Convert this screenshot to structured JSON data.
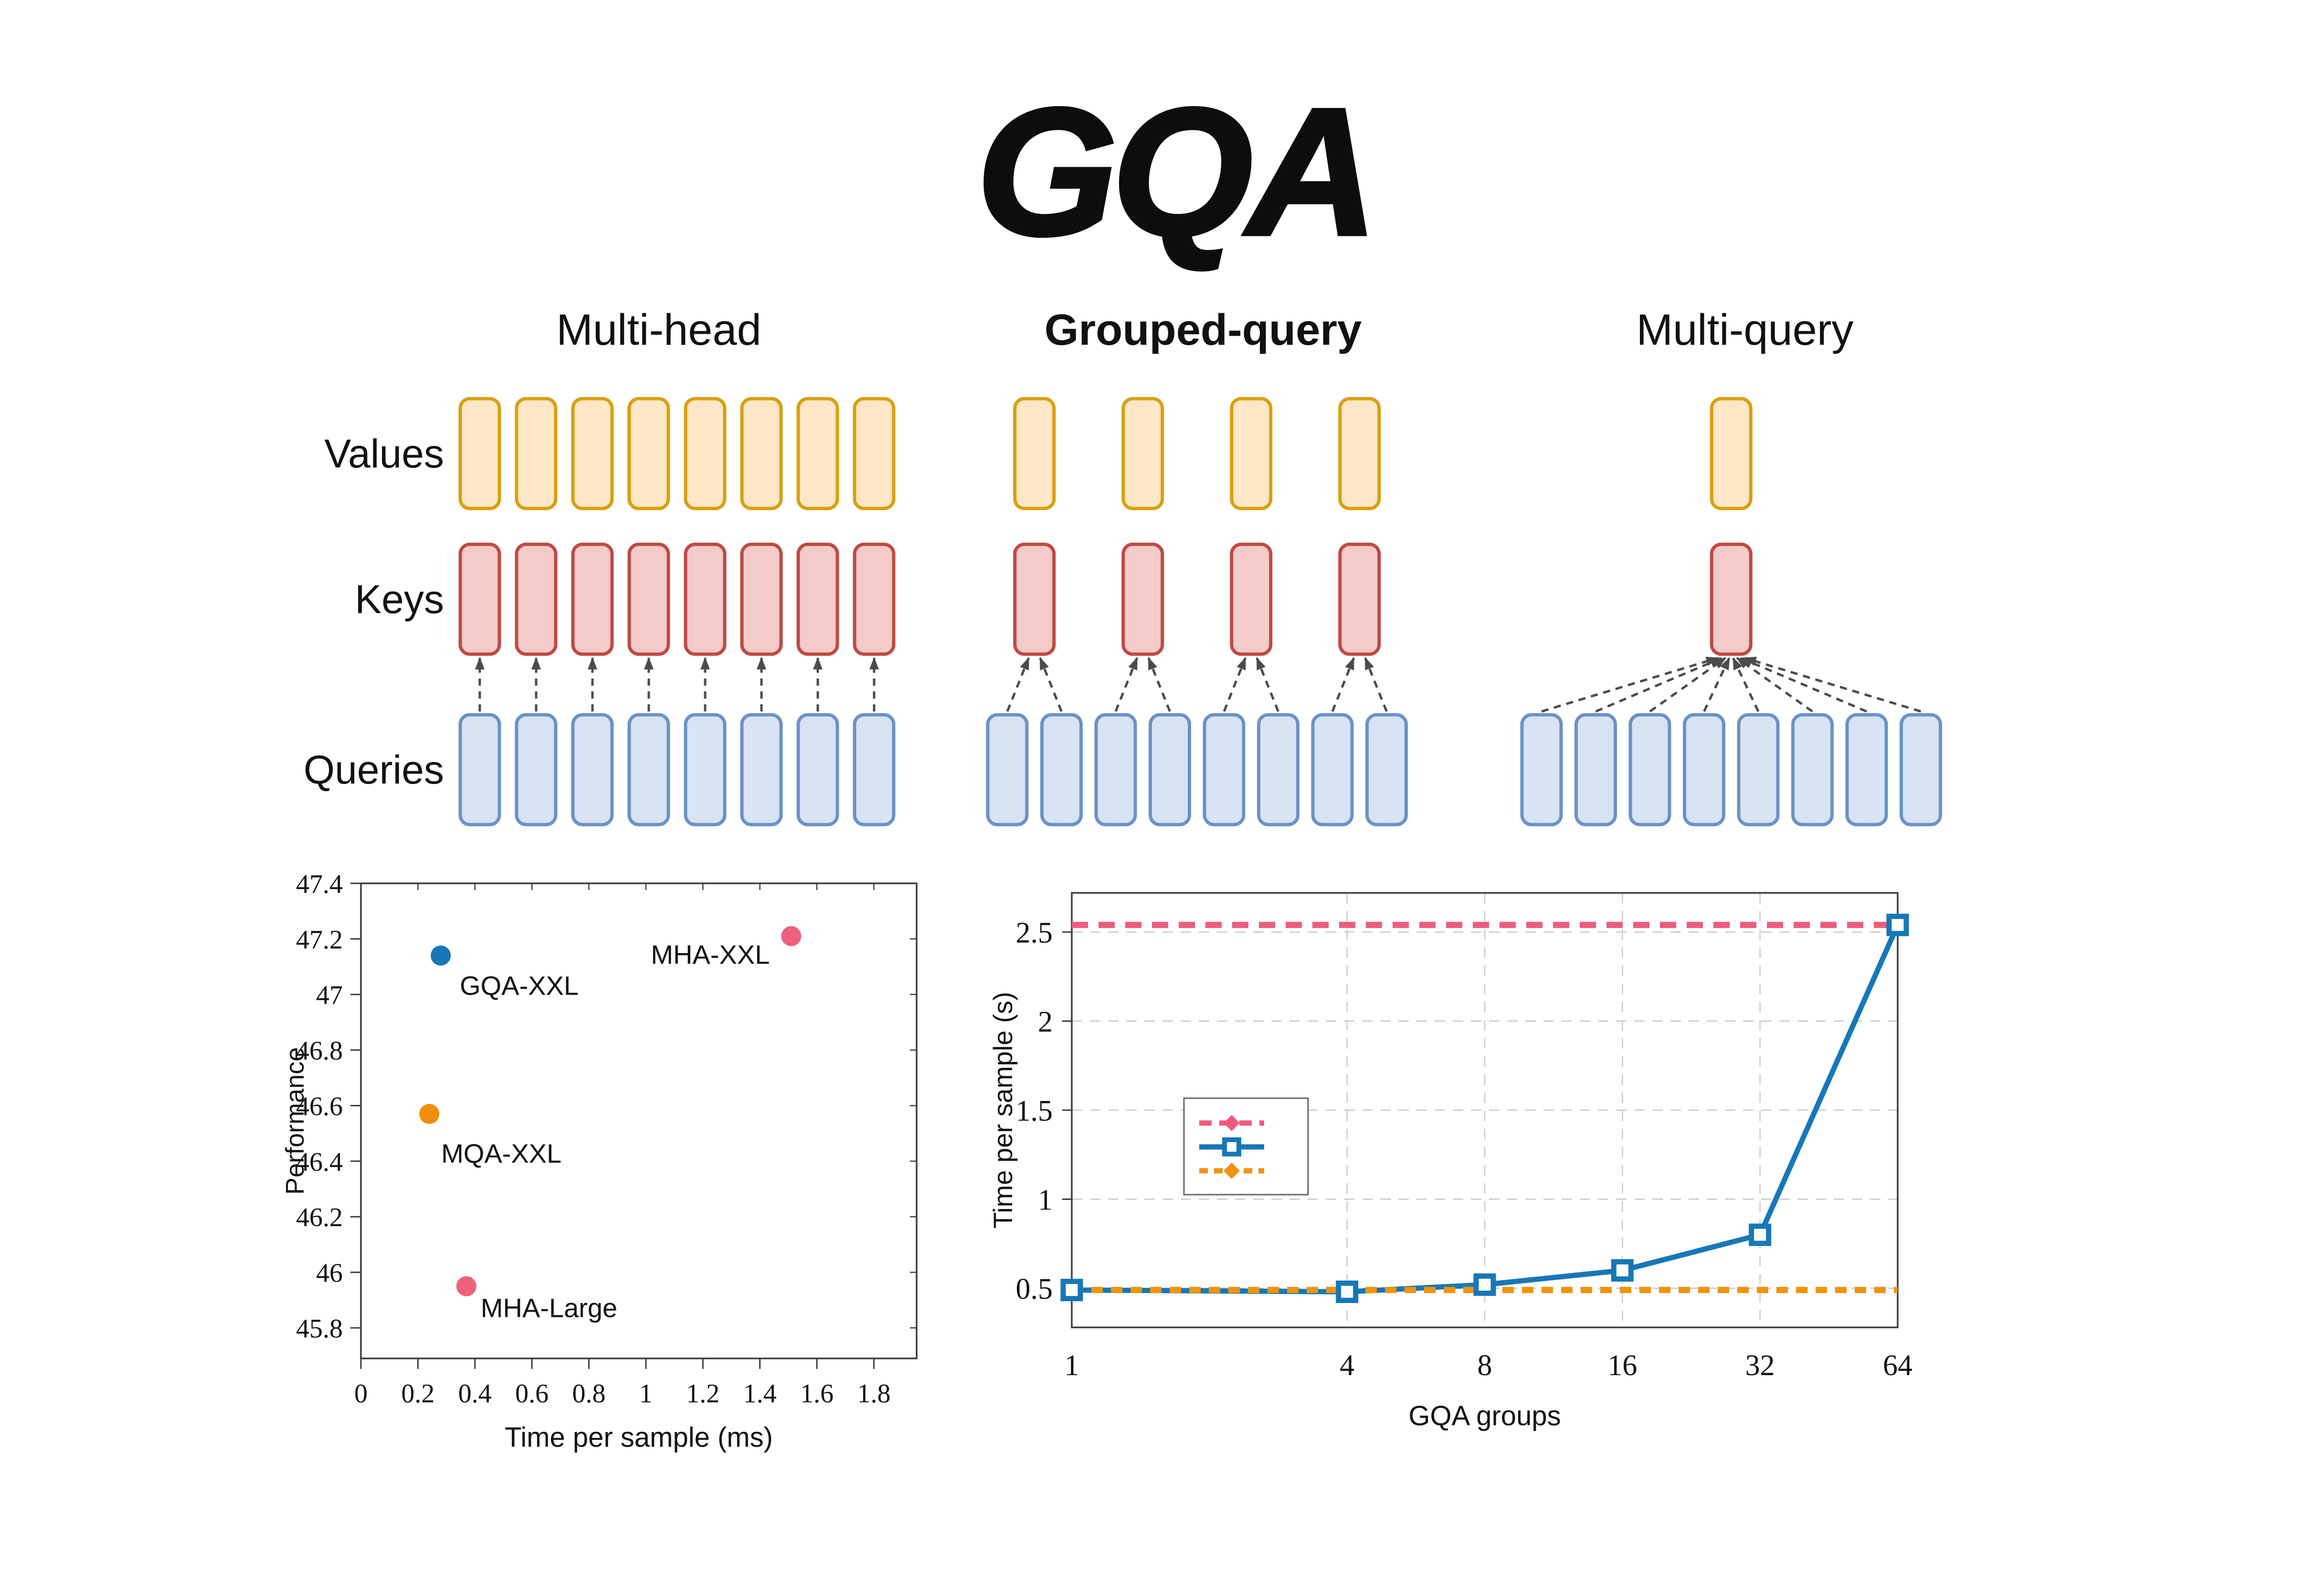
{
  "title": "GQA",
  "diagram": {
    "row_labels": [
      "Values",
      "Keys",
      "Queries"
    ],
    "colors": {
      "values_fill": "#FDE7C6",
      "values_stroke": "#D8A011",
      "keys_fill": "#F4CBC8",
      "keys_stroke": "#BE4A45",
      "queries_fill": "#D8E4F4",
      "queries_stroke": "#6B92C7",
      "connector": "#4B4B4B"
    },
    "columns": [
      {
        "title": "Multi-head",
        "bold": false,
        "num_values": 8,
        "num_keys": 8,
        "num_queries": 8
      },
      {
        "title": "Grouped-query",
        "bold": true,
        "num_values": 4,
        "num_keys": 4,
        "num_queries": 8
      },
      {
        "title": "Multi-query",
        "bold": false,
        "num_values": 1,
        "num_keys": 1,
        "num_queries": 8
      }
    ]
  },
  "chart_data": [
    {
      "type": "scatter",
      "title": "",
      "xlabel": "Time per sample (ms)",
      "ylabel": "Performance",
      "xlim": [
        0,
        1.95
      ],
      "ylim": [
        45.69,
        47.4
      ],
      "xticks": [
        0,
        0.2,
        0.4,
        0.6,
        0.8,
        1,
        1.2,
        1.4,
        1.6,
        1.8
      ],
      "yticks": [
        45.8,
        46,
        46.2,
        46.4,
        46.6,
        46.8,
        47,
        47.2,
        47.4
      ],
      "grid": false,
      "points": [
        {
          "label": "GQA-XXL",
          "x": 0.28,
          "y": 47.14,
          "color": "#1777B7",
          "label_side": "below-right"
        },
        {
          "label": "MHA-XXL",
          "x": 1.51,
          "y": 47.21,
          "color": "#EE617B",
          "label_side": "left"
        },
        {
          "label": "MQA-XXL",
          "x": 0.24,
          "y": 46.57,
          "color": "#F08E0B",
          "label_side": "below-right-far"
        },
        {
          "label": "MHA-Large",
          "x": 0.37,
          "y": 45.95,
          "color": "#EE617B",
          "label_side": "right"
        }
      ]
    },
    {
      "type": "line",
      "title": "",
      "xlabel": "GQA groups",
      "ylabel": "Time per sample (s)",
      "x_scale": "log2",
      "xticks": [
        1,
        4,
        8,
        16,
        32,
        64
      ],
      "yticks": [
        0.5,
        1,
        1.5,
        2,
        2.5
      ],
      "ylim": [
        0.28,
        2.72
      ],
      "grid": true,
      "series": [
        {
          "name": "pink-dashed-MHA-baseline",
          "style": "dashed",
          "color": "#ED5C7D",
          "constant": 2.54
        },
        {
          "name": "blue-solid-GQA",
          "style": "solid-square-marker",
          "color": "#1777B7",
          "x": [
            1,
            4,
            8,
            16,
            32,
            64
          ],
          "values": [
            0.49,
            0.48,
            0.52,
            0.6,
            0.8,
            2.54
          ]
        },
        {
          "name": "orange-dotted-MQA-baseline",
          "style": "dotted",
          "color": "#F0930F",
          "constant": 0.49
        }
      ],
      "legend": {
        "position": "center-left",
        "entries": [
          {
            "label": "",
            "style": "dashed",
            "color": "#ED5C7D",
            "marker": "diamond"
          },
          {
            "label": "",
            "style": "solid",
            "color": "#1777B7",
            "marker": "square"
          },
          {
            "label": "",
            "style": "dotted",
            "color": "#F0930F",
            "marker": "diamond"
          }
        ]
      }
    }
  ]
}
